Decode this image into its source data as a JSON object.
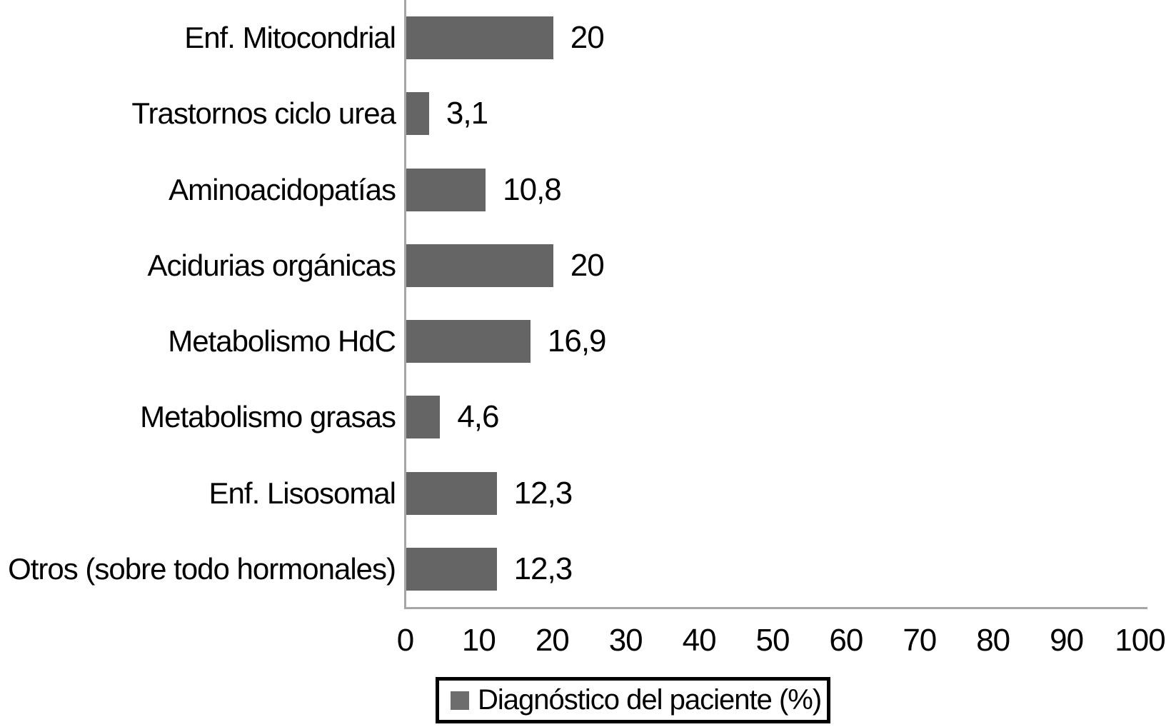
{
  "chart_data": {
    "type": "bar",
    "orientation": "horizontal",
    "title": "",
    "xlabel": "",
    "ylabel": "",
    "categories": [
      "Enf. Mitocondrial",
      "Trastornos ciclo urea",
      "Aminoacidopatías",
      "Acidurias orgánicas",
      "Metabolismo  HdC",
      "Metabolismo grasas",
      "Enf. Lisosomal",
      "Otros (sobre todo hormonales)"
    ],
    "values": [
      20,
      3.1,
      10.8,
      20,
      16.9,
      4.6,
      12.3,
      12.3
    ],
    "value_labels": [
      "20",
      "3,1",
      "10,8",
      "20",
      "16,9",
      "4,6",
      "12,3",
      "12,3"
    ],
    "x_ticks": [
      0,
      10,
      20,
      30,
      40,
      50,
      60,
      70,
      80,
      90,
      100
    ],
    "xlim": [
      0,
      100
    ],
    "grid": false,
    "legend_position": "bottom",
    "legend_label": "Diagnóstico del paciente (%)",
    "bar_color": "#656565",
    "legend_marker_color": "#6d6d6d",
    "axis_color": "#a6a6a6",
    "text_color": "#000000"
  }
}
